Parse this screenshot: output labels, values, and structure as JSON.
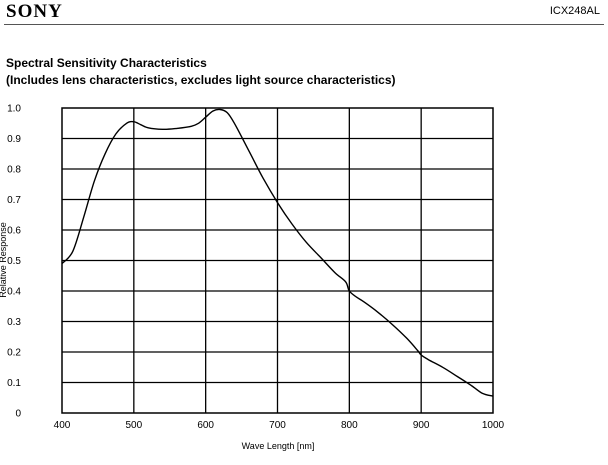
{
  "header": {
    "brand": "SONY",
    "model": "ICX248AL"
  },
  "page": {
    "title": "Spectral Sensitivity Characteristics",
    "subtitle": "(Includes lens characteristics, excludes light source characteristics)"
  },
  "chart_data": {
    "type": "line",
    "xlabel": "Wave Length [nm]",
    "ylabel": "Relative Response",
    "xlim": [
      400,
      1000
    ],
    "ylim": [
      0,
      1.0
    ],
    "x_ticks": [
      400,
      500,
      600,
      700,
      800,
      900,
      1000
    ],
    "y_ticks": [
      0,
      0.1,
      0.2,
      0.3,
      0.4,
      0.5,
      0.6,
      0.7,
      0.8,
      0.9,
      1.0
    ],
    "y_tick_labels": [
      "0",
      "0.1",
      "0.2",
      "0.3",
      "0.4",
      "0.5",
      "0.6",
      "0.7",
      "0.8",
      "0.9",
      "1.0"
    ],
    "grid": true,
    "legend": "none",
    "line_color": "#000000",
    "series": [
      {
        "x": [
          400,
          415,
          430,
          445,
          460,
          475,
          490,
          500,
          510,
          520,
          540,
          560,
          580,
          590,
          600,
          610,
          620,
          630,
          640,
          660,
          680,
          700,
          720,
          740,
          760,
          780,
          795,
          800,
          810,
          820,
          840,
          860,
          880,
          895,
          900,
          910,
          930,
          950,
          970,
          985,
          1000
        ],
        "y": [
          0.49,
          0.53,
          0.64,
          0.76,
          0.85,
          0.915,
          0.95,
          0.955,
          0.945,
          0.935,
          0.93,
          0.933,
          0.94,
          0.95,
          0.97,
          0.99,
          0.995,
          0.985,
          0.95,
          0.86,
          0.77,
          0.69,
          0.62,
          0.56,
          0.51,
          0.46,
          0.43,
          0.4,
          0.38,
          0.365,
          0.33,
          0.29,
          0.245,
          0.205,
          0.19,
          0.175,
          0.15,
          0.12,
          0.09,
          0.065,
          0.055
        ]
      }
    ]
  }
}
